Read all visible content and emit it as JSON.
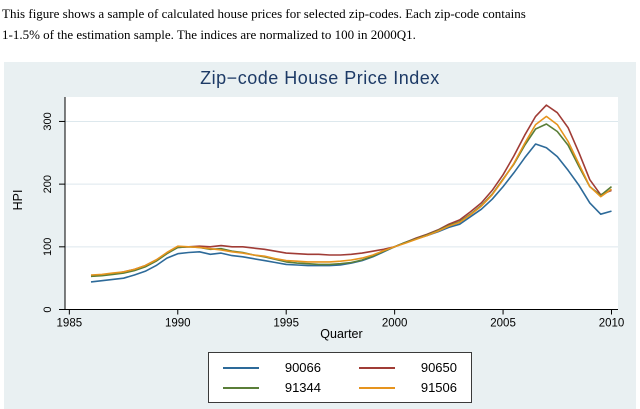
{
  "caption": {
    "line1": "This figure shows a sample of calculated house prices for selected zip-codes. Each zip-code contains",
    "line2": "1-1.5% of the estimation sample. The indices are normalized to 100 in 2000Q1."
  },
  "chart": {
    "title": "Zip−code House Price Index",
    "xlabel": "Quarter",
    "ylabel": "HPI",
    "colors": {
      "chart_background": "#e9f0f2",
      "plot_background": "#ffffff",
      "gridline": "#dde8ed",
      "axis": "#000000",
      "title": "#1d3a66"
    }
  },
  "chart_data": {
    "type": "line",
    "title": "Zip−code House Price Index",
    "xlabel": "Quarter",
    "ylabel": "HPI",
    "xlim": [
      1984.8,
      2010.3
    ],
    "ylim": [
      0,
      339
    ],
    "xticks": [
      1985,
      1990,
      1995,
      2000,
      2005,
      2010
    ],
    "yticks": [
      0,
      100,
      200,
      300
    ],
    "grid": "horizontal",
    "legend_position": "bottom-center",
    "x": [
      1986,
      1986.5,
      1987,
      1987.5,
      1988,
      1988.5,
      1989,
      1989.5,
      1990,
      1990.5,
      1991,
      1991.5,
      1992,
      1992.5,
      1993,
      1993.5,
      1994,
      1994.5,
      1995,
      1995.5,
      1996,
      1996.5,
      1997,
      1997.5,
      1998,
      1998.5,
      1999,
      1999.5,
      2000,
      2000.5,
      2001,
      2001.5,
      2002,
      2002.5,
      2003,
      2003.5,
      2004,
      2004.5,
      2005,
      2005.5,
      2006,
      2006.5,
      2007,
      2007.5,
      2008,
      2008.5,
      2009,
      2009.5,
      2010
    ],
    "series": [
      {
        "name": "90066",
        "color": "#2d6a99",
        "values": [
          44,
          46,
          48,
          50,
          55,
          61,
          70,
          82,
          89,
          91,
          92,
          88,
          90,
          86,
          84,
          81,
          78,
          75,
          72,
          71,
          70,
          70,
          70,
          71,
          74,
          78,
          84,
          92,
          100,
          107,
          113,
          118,
          124,
          131,
          136,
          148,
          160,
          176,
          196,
          218,
          242,
          264,
          258,
          244,
          222,
          198,
          170,
          152,
          157
        ]
      },
      {
        "name": "90650",
        "color": "#a03c36",
        "values": [
          53,
          55,
          57,
          60,
          64,
          70,
          79,
          90,
          99,
          100,
          101,
          100,
          102,
          100,
          100,
          98,
          96,
          93,
          90,
          89,
          88,
          88,
          87,
          87,
          88,
          90,
          93,
          96,
          100,
          107,
          114,
          120,
          127,
          136,
          143,
          156,
          170,
          190,
          215,
          245,
          278,
          308,
          326,
          314,
          290,
          250,
          207,
          183,
          190
        ]
      },
      {
        "name": "91344",
        "color": "#5a7e38",
        "values": [
          53,
          54,
          56,
          58,
          62,
          68,
          77,
          89,
          99,
          100,
          99,
          96,
          97,
          93,
          91,
          87,
          84,
          80,
          76,
          74,
          73,
          72,
          72,
          73,
          75,
          79,
          85,
          93,
          100,
          107,
          113,
          119,
          126,
          134,
          140,
          152,
          166,
          184,
          208,
          232,
          262,
          288,
          296,
          284,
          262,
          228,
          196,
          182,
          196
        ]
      },
      {
        "name": "91506",
        "color": "#e6941e",
        "values": [
          55,
          56,
          58,
          60,
          64,
          70,
          79,
          91,
          101,
          100,
          99,
          97,
          95,
          92,
          90,
          87,
          85,
          81,
          78,
          77,
          76,
          76,
          76,
          77,
          79,
          82,
          87,
          94,
          100,
          106,
          112,
          118,
          125,
          133,
          139,
          151,
          165,
          183,
          207,
          233,
          265,
          295,
          308,
          295,
          268,
          232,
          196,
          180,
          192
        ]
      }
    ]
  }
}
